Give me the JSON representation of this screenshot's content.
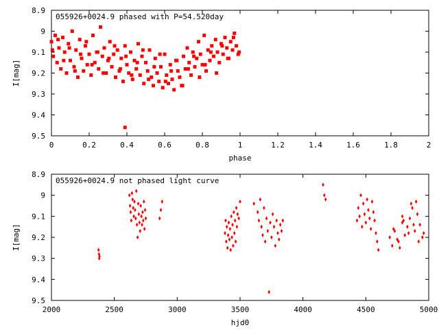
{
  "chart_data": [
    {
      "type": "scatter",
      "title": "055926+0024.9 phased with P=54.520day",
      "xlabel": "phase",
      "ylabel": "I[mag]",
      "xlim": [
        0,
        2
      ],
      "ylim": [
        9.5,
        8.9
      ],
      "y_inverted": true,
      "xticks": [
        "0",
        "0.2",
        "0.4",
        "0.6",
        "0.8",
        "1",
        "1.2",
        "1.4",
        "1.6",
        "1.8",
        "2"
      ],
      "yticks": [
        "8.9",
        "9",
        "9.1",
        "9.2",
        "9.3",
        "9.4",
        "9.5"
      ],
      "marker_color": "#ff0000",
      "series": [
        {
          "x": [
            0.0,
            0.01,
            0.02,
            0.03,
            0.04,
            0.05,
            0.06,
            0.07,
            0.08,
            0.09,
            0.1,
            0.11,
            0.12,
            0.13,
            0.14,
            0.15,
            0.16,
            0.17,
            0.18,
            0.19,
            0.2,
            0.21,
            0.22,
            0.23,
            0.24,
            0.25,
            0.26,
            0.27,
            0.28,
            0.29,
            0.3,
            0.31,
            0.32,
            0.33,
            0.34,
            0.35,
            0.36,
            0.37,
            0.38,
            0.39,
            0.4,
            0.41,
            0.42,
            0.43,
            0.44,
            0.45,
            0.46,
            0.47,
            0.48,
            0.49,
            0.5,
            0.51,
            0.52,
            0.53,
            0.54,
            0.55,
            0.56,
            0.57,
            0.58,
            0.59,
            0.6,
            0.61,
            0.62,
            0.63,
            0.64,
            0.65,
            0.66,
            0.67,
            0.68,
            0.69,
            0.7,
            0.71,
            0.72,
            0.73,
            0.74,
            0.75,
            0.76,
            0.77,
            0.78,
            0.79,
            0.8,
            0.81,
            0.82,
            0.83,
            0.84,
            0.85,
            0.86,
            0.87,
            0.88,
            0.89,
            0.9,
            0.91,
            0.92,
            0.93,
            0.94,
            0.95,
            0.96,
            0.97,
            0.98,
            0.99,
            0.005,
            0.035,
            0.065,
            0.095,
            0.125,
            0.155,
            0.185,
            0.215,
            0.245,
            0.275,
            0.305,
            0.335,
            0.365,
            0.395,
            0.425,
            0.455,
            0.485,
            0.515,
            0.545,
            0.575,
            0.605,
            0.635,
            0.665,
            0.695,
            0.725,
            0.755,
            0.785,
            0.815,
            0.845,
            0.875,
            0.905,
            0.935,
            0.965,
            0.995,
            0.39
          ],
          "y": [
            9.05,
            9.12,
            9.02,
            9.15,
            9.08,
            9.18,
            9.03,
            9.1,
            9.2,
            9.06,
            9.14,
            9.0,
            9.17,
            9.09,
            9.22,
            9.04,
            9.13,
            9.19,
            9.07,
            9.16,
            9.11,
            9.21,
            9.02,
            9.15,
            9.1,
            9.18,
            8.98,
            9.12,
            9.08,
            9.2,
            9.14,
            9.05,
            9.17,
            9.11,
            9.22,
            9.09,
            9.19,
            9.13,
            9.24,
            9.07,
            9.16,
            9.2,
            9.1,
            9.23,
            9.14,
            9.18,
            9.06,
            9.21,
            9.12,
            9.25,
            9.15,
            9.19,
            9.09,
            9.22,
            9.26,
            9.13,
            9.2,
            9.24,
            9.17,
            9.27,
            9.11,
            9.21,
            9.25,
            9.16,
            9.23,
            9.28,
            9.14,
            9.19,
            9.22,
            9.26,
            9.12,
            9.18,
            9.08,
            9.15,
            9.21,
            9.1,
            9.17,
            9.13,
            9.05,
            9.11,
            9.16,
            9.02,
            9.19,
            9.09,
            9.14,
            9.07,
            9.12,
            9.04,
            9.1,
            9.15,
            9.06,
            9.11,
            9.03,
            9.08,
            9.13,
            9.05,
            9.09,
            9.01,
            9.07,
            9.11,
            9.09,
            9.04,
            9.14,
            9.08,
            9.19,
            9.11,
            9.05,
            9.16,
            9.1,
            9.2,
            9.13,
            9.07,
            9.18,
            9.12,
            9.21,
            9.15,
            9.09,
            9.23,
            9.17,
            9.11,
            9.24,
            9.19,
            9.14,
            9.26,
            9.18,
            9.12,
            9.22,
            9.16,
            9.1,
            9.2,
            9.07,
            9.13,
            9.03,
            9.1,
            9.46
          ]
        }
      ]
    },
    {
      "type": "scatter",
      "title": "055926+0024.9 not phased light curve",
      "xlabel": "hjd0",
      "ylabel": "I[mag]",
      "xlim": [
        2000,
        5000
      ],
      "ylim": [
        9.5,
        8.9
      ],
      "y_inverted": true,
      "xticks": [
        "2000",
        "2500",
        "3000",
        "3500",
        "4000",
        "4500",
        "5000"
      ],
      "yticks": [
        "8.9",
        "9",
        "9.1",
        "9.2",
        "9.3",
        "9.4",
        "9.5"
      ],
      "marker_color": "#ff0000",
      "series": [
        {
          "x": [
            2375,
            2378,
            2380,
            2382,
            2620,
            2625,
            2630,
            2635,
            2640,
            2645,
            2650,
            2655,
            2660,
            2665,
            2670,
            2675,
            2680,
            2685,
            2690,
            2695,
            2700,
            2705,
            2710,
            2715,
            2720,
            2725,
            2730,
            2735,
            2740,
            2745,
            2750,
            2860,
            2870,
            2880,
            3380,
            3385,
            3390,
            3395,
            3400,
            3405,
            3410,
            3415,
            3420,
            3425,
            3430,
            3435,
            3440,
            3445,
            3450,
            3455,
            3460,
            3465,
            3470,
            3475,
            3480,
            3490,
            3500,
            3610,
            3640,
            3650,
            3660,
            3670,
            3680,
            3690,
            3700,
            3710,
            3720,
            3730,
            3740,
            3750,
            3760,
            3770,
            3780,
            3790,
            3800,
            3810,
            3820,
            3830,
            3840,
            4160,
            4170,
            4180,
            4430,
            4440,
            4450,
            4460,
            4470,
            4480,
            4490,
            4500,
            4510,
            4520,
            4530,
            4540,
            4550,
            4560,
            4570,
            4580,
            4590,
            4600,
            4690,
            4710,
            4730,
            4750,
            4770,
            4790,
            4810,
            4830,
            4850,
            4870,
            4890,
            4910,
            4930,
            4950,
            4720,
            4760,
            4800,
            4840,
            4880,
            4920,
            4960,
            4790,
            4860,
            4900
          ],
          "y": [
            9.26,
            9.28,
            9.3,
            9.29,
            9.0,
            9.05,
            9.08,
            9.12,
            8.99,
            9.02,
            9.06,
            9.1,
            9.03,
            9.07,
            9.11,
            8.98,
            9.14,
            9.2,
            9.04,
            9.09,
            9.13,
            9.17,
            9.05,
            9.1,
            9.14,
            9.08,
            9.12,
            9.03,
            9.16,
            9.07,
            9.11,
            9.11,
            9.07,
            9.03,
            9.18,
            9.12,
            9.22,
            9.15,
            9.25,
            9.19,
            9.13,
            9.21,
            9.16,
            9.26,
            9.1,
            9.2,
            9.14,
            9.24,
            9.08,
            9.18,
            9.12,
            9.22,
            9.06,
            9.15,
            9.09,
            9.11,
            9.03,
            9.04,
            9.08,
            9.12,
            9.02,
            9.15,
            9.19,
            9.06,
            9.22,
            9.11,
            9.17,
            9.46,
            9.13,
            9.2,
            9.09,
            9.15,
            9.24,
            9.12,
            9.18,
            9.21,
            9.14,
            9.17,
            9.12,
            8.95,
            9.0,
            9.02,
            9.12,
            9.06,
            9.1,
            9.0,
            9.15,
            9.04,
            9.09,
            9.13,
            9.02,
            9.07,
            9.11,
            9.16,
            9.03,
            9.08,
            9.12,
            9.18,
            9.22,
            9.26,
            9.2,
            9.24,
            9.17,
            9.21,
            9.25,
            9.13,
            9.19,
            9.15,
            9.11,
            9.06,
            9.17,
            9.09,
            9.14,
            9.2,
            9.16,
            9.22,
            9.12,
            9.18,
            9.14,
            9.22,
            9.18,
            9.1,
            9.04,
            9.03
          ]
        }
      ]
    }
  ]
}
